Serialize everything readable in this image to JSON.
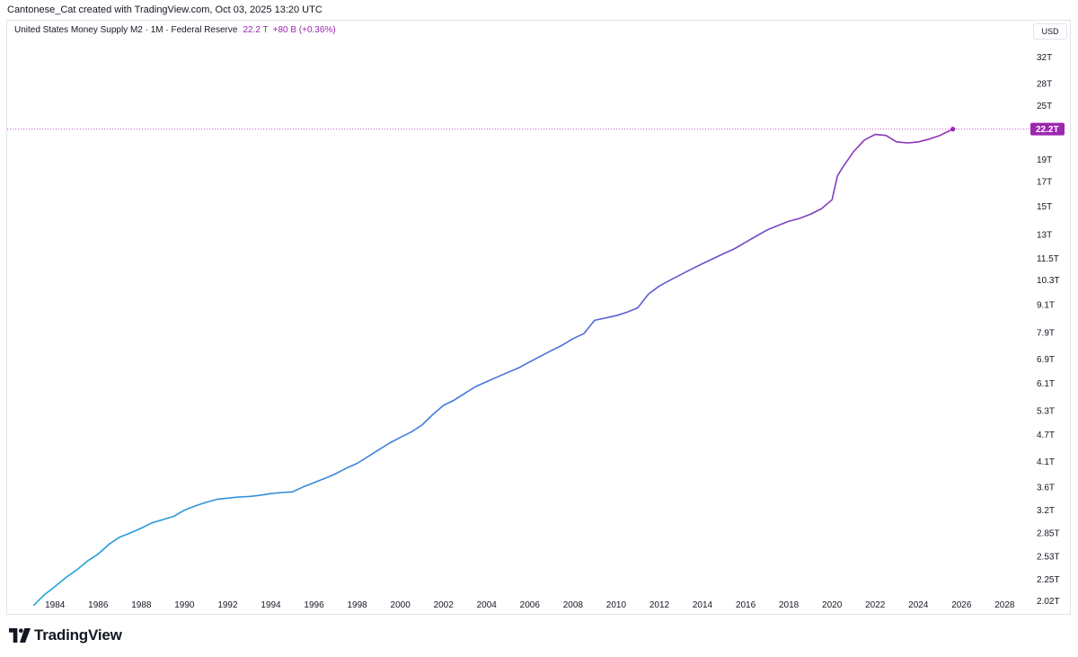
{
  "header": {
    "credit": "Cantonese_Cat created with TradingView.com, Oct 03, 2025 13:20 UTC"
  },
  "legend": {
    "title": "United States Money Supply M2 · 1M · Federal Reserve",
    "value": "22.2 T",
    "change": "+80 B (+0.36%)"
  },
  "axis": {
    "currency": "USD",
    "last_price_label": "22.2T"
  },
  "brand": {
    "name": "TradingView"
  },
  "colors": {
    "line_start": "#1fa6d8",
    "line_mid": "#4a6fdc",
    "line_end": "#9c27b0",
    "price_line": "#d05ad6",
    "label_bg": "#9c27b0"
  },
  "chart_data": {
    "type": "line",
    "title": "United States Money Supply M2 · 1M · Federal Reserve",
    "xlabel": "",
    "ylabel": "",
    "yscale": "log",
    "ylim": [
      1.95,
      35
    ],
    "xlim": [
      1982.7,
      2028.9
    ],
    "grid": false,
    "x_ticks": [
      1984,
      1986,
      1988,
      1990,
      1992,
      1994,
      1996,
      1998,
      2000,
      2002,
      2004,
      2006,
      2008,
      2010,
      2012,
      2014,
      2016,
      2018,
      2020,
      2022,
      2024,
      2026,
      2028
    ],
    "y_ticks": [
      {
        "value": 2.02,
        "label": "2.02T"
      },
      {
        "value": 2.25,
        "label": "2.25T"
      },
      {
        "value": 2.53,
        "label": "2.53T"
      },
      {
        "value": 2.85,
        "label": "2.85T"
      },
      {
        "value": 3.2,
        "label": "3.2T"
      },
      {
        "value": 3.6,
        "label": "3.6T"
      },
      {
        "value": 4.1,
        "label": "4.1T"
      },
      {
        "value": 4.7,
        "label": "4.7T"
      },
      {
        "value": 5.3,
        "label": "5.3T"
      },
      {
        "value": 6.1,
        "label": "6.1T"
      },
      {
        "value": 6.9,
        "label": "6.9T"
      },
      {
        "value": 7.9,
        "label": "7.9T"
      },
      {
        "value": 9.1,
        "label": "9.1T"
      },
      {
        "value": 10.3,
        "label": "10.3T"
      },
      {
        "value": 11.5,
        "label": "11.5T"
      },
      {
        "value": 13,
        "label": "13T"
      },
      {
        "value": 15,
        "label": "15T"
      },
      {
        "value": 17,
        "label": "17T"
      },
      {
        "value": 19,
        "label": "19T"
      },
      {
        "value": 25,
        "label": "25T"
      },
      {
        "value": 28,
        "label": "28T"
      },
      {
        "value": 32,
        "label": "32T"
      }
    ],
    "last_value": 22.2,
    "series": [
      {
        "values_unit": "T",
        "x": [
          1983.0,
          1983.5,
          1984.0,
          1984.5,
          1985.0,
          1985.5,
          1986.0,
          1986.5,
          1987.0,
          1987.5,
          1988.0,
          1988.5,
          1989.0,
          1989.5,
          1990.0,
          1990.5,
          1991.0,
          1991.5,
          1992.0,
          1992.5,
          1993.0,
          1993.5,
          1994.0,
          1994.5,
          1995.0,
          1995.5,
          1996.0,
          1996.5,
          1997.0,
          1997.5,
          1998.0,
          1998.5,
          1999.0,
          1999.5,
          2000.0,
          2000.5,
          2001.0,
          2001.5,
          2002.0,
          2002.5,
          2003.0,
          2003.5,
          2004.0,
          2004.5,
          2005.0,
          2005.5,
          2006.0,
          2006.5,
          2007.0,
          2007.5,
          2008.0,
          2008.5,
          2009.0,
          2009.5,
          2010.0,
          2010.5,
          2011.0,
          2011.5,
          2012.0,
          2012.5,
          2013.0,
          2013.5,
          2014.0,
          2014.5,
          2015.0,
          2015.5,
          2016.0,
          2016.5,
          2017.0,
          2017.5,
          2018.0,
          2018.5,
          2019.0,
          2019.5,
          2020.0,
          2020.25,
          2020.5,
          2021.0,
          2021.5,
          2022.0,
          2022.5,
          2023.0,
          2023.5,
          2024.0,
          2024.5,
          2025.0,
          2025.6
        ],
        "values": [
          1.97,
          2.08,
          2.17,
          2.27,
          2.36,
          2.47,
          2.56,
          2.69,
          2.79,
          2.85,
          2.92,
          3.0,
          3.05,
          3.1,
          3.2,
          3.27,
          3.33,
          3.38,
          3.4,
          3.42,
          3.43,
          3.45,
          3.48,
          3.5,
          3.51,
          3.6,
          3.68,
          3.76,
          3.85,
          3.96,
          4.06,
          4.2,
          4.35,
          4.5,
          4.63,
          4.76,
          4.93,
          5.2,
          5.45,
          5.6,
          5.8,
          6.0,
          6.15,
          6.3,
          6.45,
          6.6,
          6.8,
          7.0,
          7.2,
          7.4,
          7.65,
          7.85,
          8.4,
          8.5,
          8.6,
          8.75,
          8.95,
          9.6,
          10.0,
          10.3,
          10.6,
          10.9,
          11.2,
          11.5,
          11.8,
          12.1,
          12.5,
          12.9,
          13.3,
          13.6,
          13.9,
          14.1,
          14.4,
          14.8,
          15.5,
          17.5,
          18.3,
          19.8,
          21.0,
          21.6,
          21.5,
          20.8,
          20.7,
          20.8,
          21.1,
          21.5,
          22.2
        ]
      }
    ]
  }
}
